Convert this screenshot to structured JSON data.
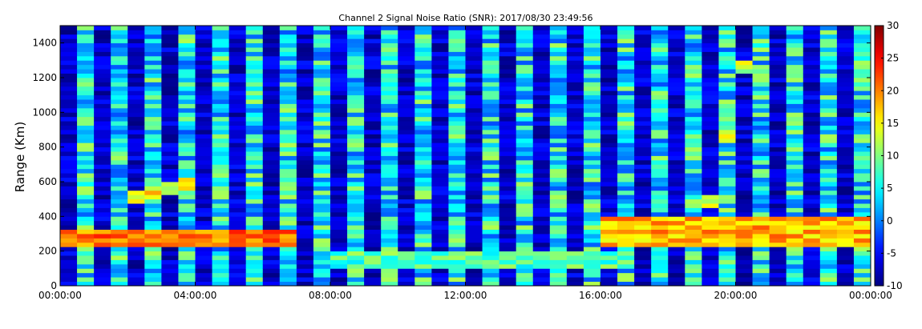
{
  "chart_data": {
    "type": "heatmap",
    "title": "Channel 2 Signal Noise Ratio (SNR): 2017/08/30 23:49:56",
    "xlabel": "",
    "ylabel": "Range (Km)",
    "x_ticks": [
      "00:00:00",
      "04:00:00",
      "08:00:00",
      "12:00:00",
      "16:00:00",
      "20:00:00",
      "00:00:00"
    ],
    "x_range_hours": [
      0,
      24
    ],
    "y_ticks": [
      0,
      200,
      400,
      600,
      800,
      1000,
      1200,
      1400
    ],
    "ylim": [
      0,
      1500
    ],
    "colorbar": {
      "label": "",
      "range": [
        -10,
        30
      ],
      "ticks": [
        -10,
        -5,
        0,
        5,
        10,
        15,
        20,
        25,
        30
      ],
      "colormap": "jet"
    },
    "grid": false,
    "legend": "none",
    "features": [
      {
        "description": "strong ground-echo band",
        "range_km": [
          220,
          320
        ],
        "time_hours": [
          0,
          7
        ],
        "snr_db": 20
      },
      {
        "description": "strong ground-echo band",
        "range_km": [
          230,
          400
        ],
        "time_hours": [
          16,
          24
        ],
        "snr_db": 18
      },
      {
        "description": "low-range layer",
        "range_km": [
          90,
          200
        ],
        "time_hours": [
          8,
          17
        ],
        "snr_db": 8
      },
      {
        "description": "diagonal echo trace rising",
        "range_km": [
          300,
          1450
        ],
        "time_hours": [
          19,
          20.5
        ],
        "snr_db": 12
      },
      {
        "description": "diagonal echo trace",
        "range_km": [
          500,
          600
        ],
        "time_hours": [
          2,
          4
        ],
        "snr_db": 15
      }
    ]
  },
  "colors": {
    "jet_low": "#00007f",
    "jet_high": "#7f0000",
    "frame": "#000000",
    "background": "#ffffff"
  }
}
